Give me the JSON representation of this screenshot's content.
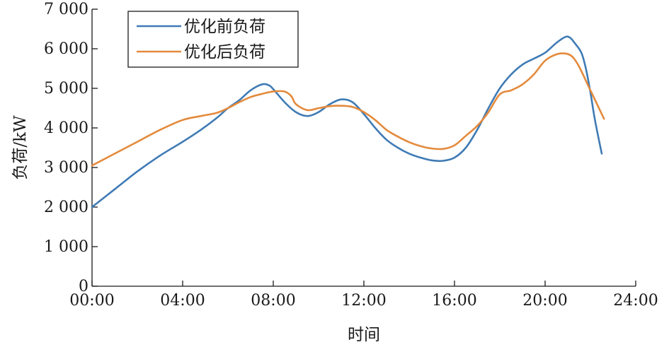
{
  "chart_data": {
    "type": "line",
    "title": "",
    "xlabel": "时间",
    "ylabel": "负荷/kW",
    "xlim": [
      0,
      24
    ],
    "ylim": [
      0,
      7000
    ],
    "x_ticks": [
      0,
      4,
      8,
      12,
      16,
      20,
      24
    ],
    "x_tick_labels": [
      "00:00",
      "04:00",
      "08:00",
      "12:00",
      "16:00",
      "20:00",
      "24:00"
    ],
    "y_ticks": [
      0,
      1000,
      2000,
      3000,
      4000,
      5000,
      6000,
      7000
    ],
    "y_tick_labels": [
      "0",
      "1 000",
      "2 000",
      "3 000",
      "4 000",
      "5 000",
      "6 000",
      "7 000"
    ],
    "grid": false,
    "legend_position": "top-left",
    "series": [
      {
        "name": "优化前负荷",
        "color": "#3f7bb5",
        "x": [
          0,
          1,
          2,
          3,
          4,
          4.8,
          5.5,
          6,
          6.5,
          7,
          7.5,
          7.8,
          8,
          8.5,
          9,
          9.5,
          10,
          10.5,
          11,
          11.5,
          12,
          12.5,
          13,
          13.5,
          14,
          14.5,
          15,
          15.5,
          16,
          16.5,
          17,
          17.5,
          18,
          18.5,
          19,
          19.5,
          20,
          20.5,
          20.9,
          21.1,
          21.3,
          21.6,
          21.8,
          22,
          22.2,
          22.5
        ],
        "values": [
          2000,
          2450,
          2900,
          3300,
          3650,
          3950,
          4250,
          4500,
          4700,
          4950,
          5100,
          5080,
          4980,
          4650,
          4400,
          4300,
          4400,
          4600,
          4720,
          4650,
          4350,
          4000,
          3700,
          3500,
          3350,
          3250,
          3180,
          3170,
          3250,
          3500,
          3950,
          4500,
          5000,
          5350,
          5600,
          5750,
          5900,
          6150,
          6300,
          6280,
          6150,
          5900,
          5500,
          4900,
          4200,
          3350
        ]
      },
      {
        "name": "优化后负荷",
        "color": "#e48a3c",
        "x": [
          0,
          1,
          2,
          3,
          4,
          4.8,
          5.5,
          6,
          6.5,
          7,
          7.5,
          8,
          8.5,
          8.8,
          9,
          9.5,
          10,
          10.5,
          11,
          11.5,
          12,
          12.5,
          13,
          13.5,
          14,
          14.5,
          15,
          15.5,
          16,
          16.5,
          17,
          17.5,
          18,
          18.5,
          19,
          19.5,
          20,
          20.5,
          20.9,
          21.2,
          21.5,
          22,
          22.6
        ],
        "values": [
          3050,
          3350,
          3650,
          3950,
          4200,
          4300,
          4380,
          4500,
          4650,
          4780,
          4860,
          4920,
          4920,
          4800,
          4600,
          4450,
          4500,
          4550,
          4560,
          4530,
          4400,
          4200,
          3950,
          3780,
          3640,
          3540,
          3480,
          3470,
          3560,
          3800,
          4050,
          4400,
          4850,
          4950,
          5100,
          5350,
          5700,
          5860,
          5880,
          5800,
          5550,
          4950,
          4230
        ]
      }
    ]
  }
}
